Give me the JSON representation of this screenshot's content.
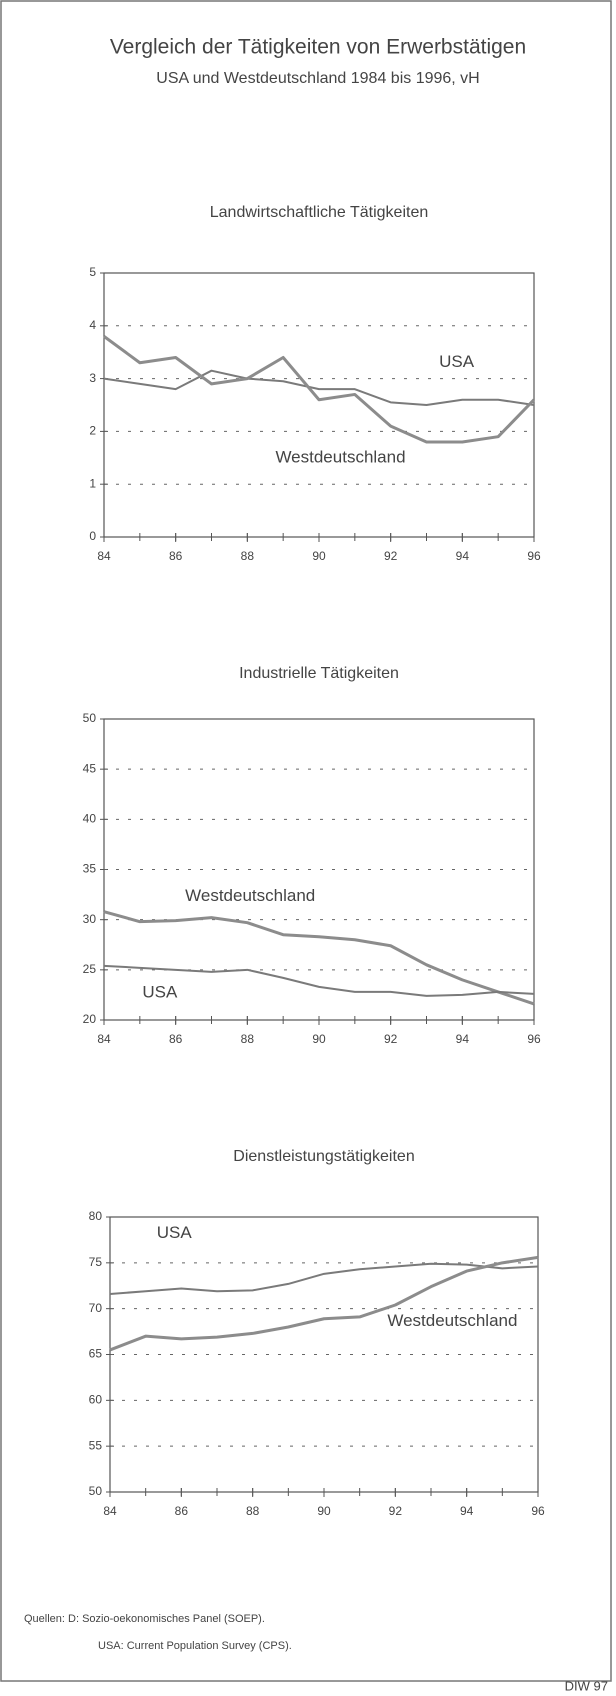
{
  "title": "Vergleich der Tätigkeiten von Erwerbstätigen",
  "subtitle": "USA und Westdeutschland 1984 bis 1996, vH",
  "sources": [
    "Quellen: D: Sozio-oekonomisches Panel (SOEP).",
    "USA: Current Population Survey (CPS)."
  ],
  "credit": "DIW 97",
  "chart_data": [
    {
      "type": "line",
      "title": "Landwirtschaftliche Tätigkeiten",
      "x": [
        84,
        85,
        86,
        87,
        88,
        89,
        90,
        91,
        92,
        93,
        94,
        95,
        96
      ],
      "series": [
        {
          "name": "USA",
          "color": "#7a7a7a",
          "values": [
            3.0,
            2.9,
            2.8,
            3.15,
            3.0,
            2.95,
            2.8,
            2.8,
            2.55,
            2.5,
            2.6,
            2.6,
            2.5
          ]
        },
        {
          "name": "Westdeutschland",
          "color": "#8c8c8c",
          "values": [
            3.8,
            3.3,
            3.4,
            2.9,
            3.0,
            3.4,
            2.6,
            2.7,
            2.1,
            1.8,
            1.8,
            1.9,
            2.6
          ]
        }
      ],
      "xlim": [
        84,
        96
      ],
      "xticks": [
        84,
        86,
        88,
        90,
        92,
        94,
        96
      ],
      "ylim": [
        0,
        5
      ],
      "yticks": [
        0,
        1,
        2,
        3,
        4,
        5
      ],
      "grid": true
    },
    {
      "type": "line",
      "title": "Industrielle Tätigkeiten",
      "x": [
        84,
        85,
        86,
        87,
        88,
        89,
        90,
        91,
        92,
        93,
        94,
        95,
        96
      ],
      "series": [
        {
          "name": "Westdeutschland",
          "color": "#8c8c8c",
          "values": [
            30.8,
            29.8,
            29.9,
            30.2,
            29.7,
            28.5,
            28.3,
            28.0,
            27.4,
            25.5,
            24.0,
            22.8,
            21.6
          ]
        },
        {
          "name": "USA",
          "color": "#7a7a7a",
          "values": [
            25.4,
            25.2,
            25.0,
            24.8,
            25.0,
            24.2,
            23.3,
            22.8,
            22.8,
            22.4,
            22.5,
            22.8,
            22.6
          ]
        }
      ],
      "xlim": [
        84,
        96
      ],
      "xticks": [
        84,
        86,
        88,
        90,
        92,
        94,
        96
      ],
      "ylim": [
        20,
        50
      ],
      "yticks": [
        20,
        25,
        30,
        35,
        40,
        45,
        50
      ],
      "grid": true
    },
    {
      "type": "line",
      "title": "Dienstleistungstätigkeiten",
      "x": [
        84,
        85,
        86,
        87,
        88,
        89,
        90,
        91,
        92,
        93,
        94,
        95,
        96
      ],
      "series": [
        {
          "name": "USA",
          "color": "#7a7a7a",
          "values": [
            71.6,
            71.9,
            72.2,
            71.9,
            72.0,
            72.7,
            73.8,
            74.3,
            74.6,
            74.9,
            74.8,
            74.4,
            74.6
          ]
        },
        {
          "name": "Westdeutschland",
          "color": "#8c8c8c",
          "values": [
            65.5,
            67.0,
            66.7,
            66.9,
            67.3,
            68.0,
            68.9,
            69.1,
            70.4,
            72.4,
            74.1,
            75.0,
            75.6
          ]
        }
      ],
      "xlim": [
        84,
        96
      ],
      "xticks": [
        84,
        86,
        88,
        90,
        92,
        94,
        96
      ],
      "ylim": [
        50,
        80
      ],
      "yticks": [
        50,
        55,
        60,
        65,
        70,
        75,
        80
      ],
      "grid": true
    }
  ]
}
